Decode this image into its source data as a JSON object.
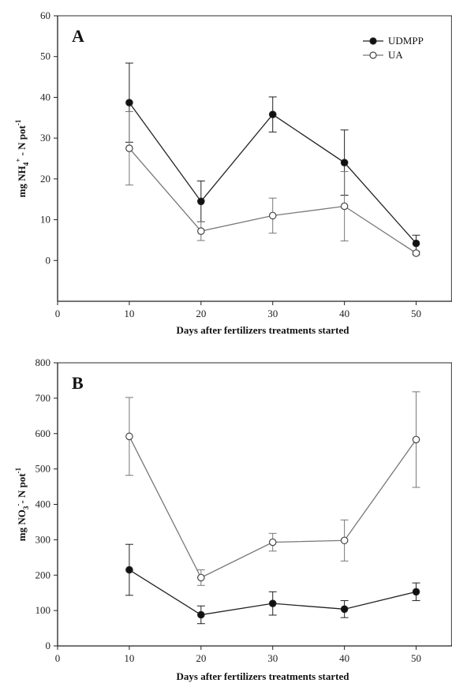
{
  "chart_data": [
    {
      "type": "line",
      "panel_label": "A",
      "xlabel": "Days after fertilizers treatments started",
      "ylabel": {
        "pre": "mg NH",
        "sub": "4",
        "sup": "+",
        "mid": " - N pot",
        "sup2": "-1"
      },
      "xlim": [
        0,
        55
      ],
      "ylim": [
        -10,
        60
      ],
      "x_ticks": [
        0,
        10,
        20,
        30,
        40,
        50
      ],
      "y_ticks": [
        0,
        10,
        20,
        30,
        40,
        50,
        60
      ],
      "legend": "top-right",
      "series": [
        {
          "name": "UDMPP",
          "marker": "filled",
          "x": [
            10,
            20,
            30,
            40,
            50
          ],
          "y": [
            38.7,
            14.5,
            35.8,
            24.0,
            4.2
          ],
          "err": [
            9.7,
            5.0,
            4.3,
            8.0,
            2.0
          ]
        },
        {
          "name": "UA",
          "marker": "open",
          "x": [
            10,
            20,
            30,
            40,
            50
          ],
          "y": [
            27.5,
            7.2,
            11.0,
            13.3,
            1.8
          ],
          "err": [
            9.0,
            2.3,
            4.3,
            8.5,
            0.4
          ]
        }
      ]
    },
    {
      "type": "line",
      "panel_label": "B",
      "xlabel": "Days after fertilizers treatments started",
      "ylabel": {
        "pre": "mg NO",
        "sub": "3",
        "sup": "-",
        "mid": "- N pot",
        "sup2": "-1"
      },
      "xlim": [
        0,
        55
      ],
      "ylim": [
        0,
        800
      ],
      "x_ticks": [
        0,
        10,
        20,
        30,
        40,
        50
      ],
      "y_ticks": [
        0,
        100,
        200,
        300,
        400,
        500,
        600,
        700,
        800
      ],
      "series": [
        {
          "name": "UDMPP",
          "marker": "filled",
          "x": [
            10,
            20,
            30,
            40,
            50
          ],
          "y": [
            215,
            88,
            120,
            104,
            153
          ],
          "err": [
            72,
            25,
            33,
            24,
            25
          ]
        },
        {
          "name": "UA",
          "marker": "open",
          "x": [
            10,
            20,
            30,
            40,
            50
          ],
          "y": [
            592,
            193,
            293,
            298,
            583
          ],
          "err": [
            110,
            22,
            25,
            58,
            135
          ]
        }
      ]
    }
  ]
}
